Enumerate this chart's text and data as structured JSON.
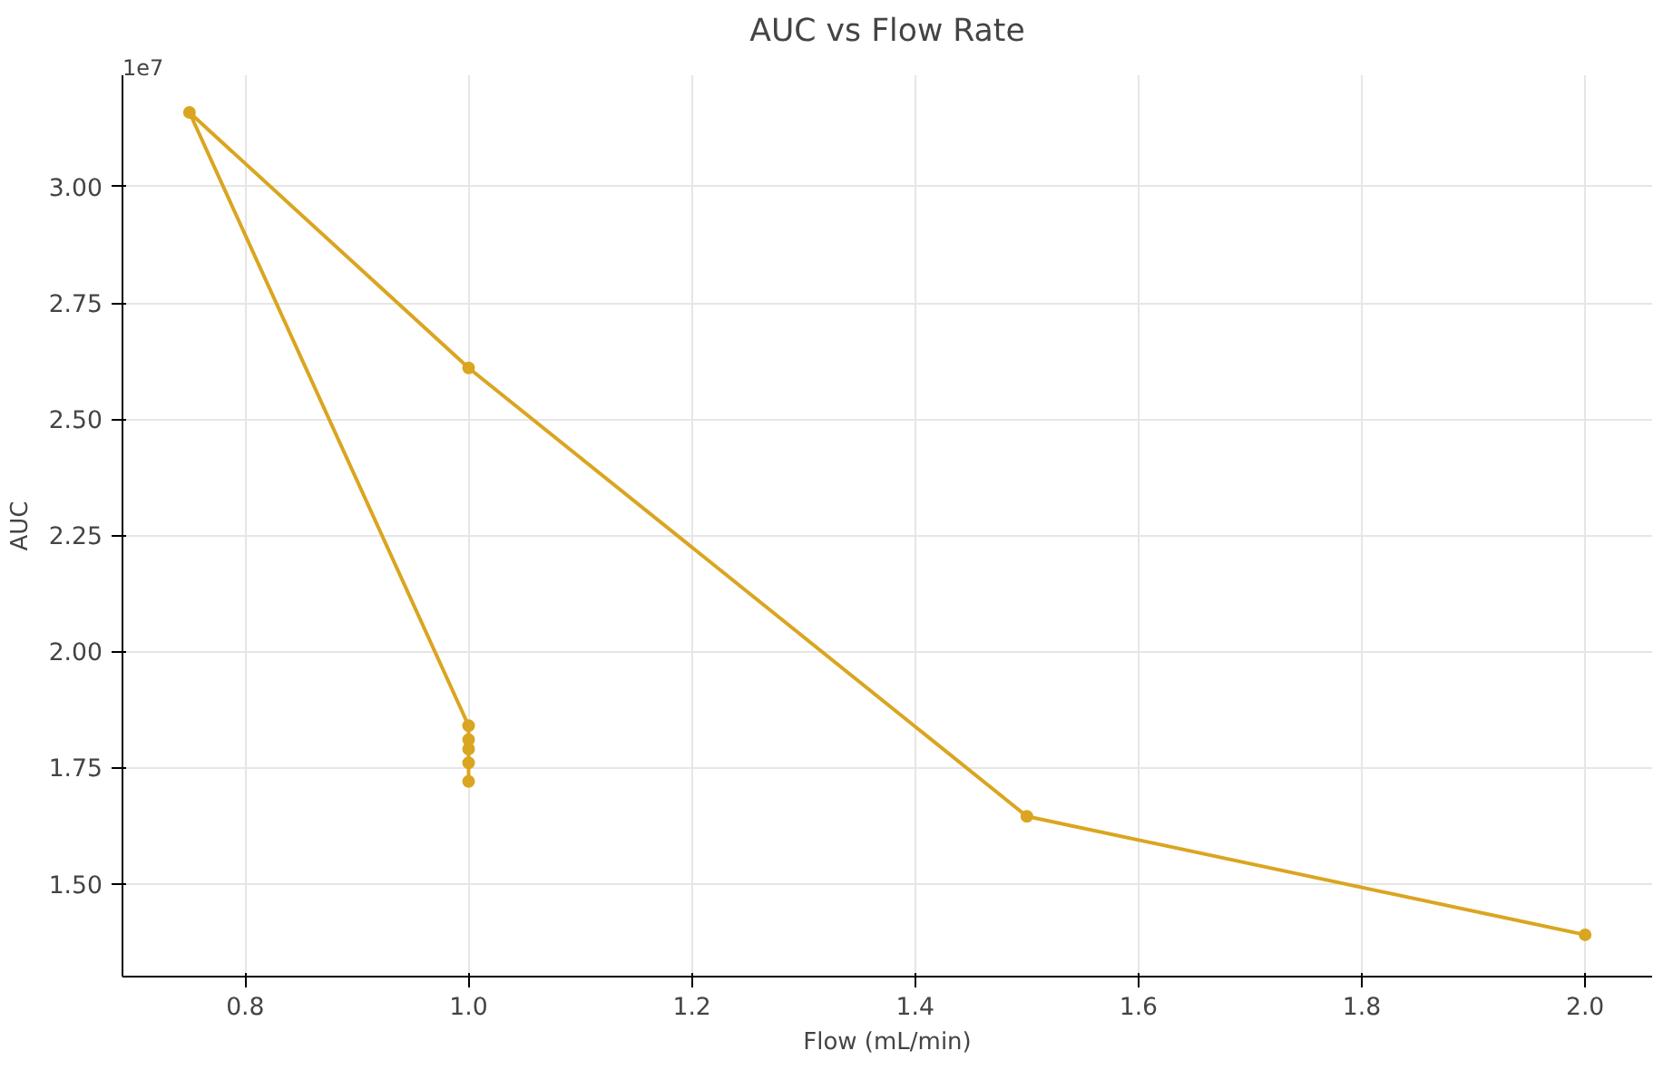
{
  "chart_data": {
    "type": "line",
    "title": "AUC vs Flow Rate",
    "xlabel": "Flow (mL/min)",
    "ylabel": "AUC",
    "annotations": [
      "1e7"
    ],
    "series": [
      {
        "color": "#daa520",
        "x": [
          1.0,
          1.0,
          1.0,
          1.0,
          1.0,
          0.75,
          1.0,
          1.5,
          2.0
        ],
        "values": [
          1.72,
          1.76,
          1.79,
          1.81,
          1.84,
          3.16,
          2.61,
          1.645,
          1.39
        ]
      }
    ],
    "xlim": [
      0.69,
      2.06
    ],
    "ylim": [
      1.3,
      3.24
    ],
    "xticks": [
      0.8,
      {
        "value": 1.0,
        "label": "1.0"
      },
      1.2,
      1.4,
      1.6,
      1.8,
      {
        "value": 2.0,
        "label": "2.0"
      }
    ],
    "yticks": [
      {
        "value": 1.5,
        "label": "1.50"
      },
      1.75,
      {
        "value": 2.0,
        "label": "2.00"
      },
      2.25,
      {
        "value": 2.5,
        "label": "2.50"
      },
      2.75,
      {
        "value": 3.0,
        "label": "3.00"
      }
    ],
    "grid": true,
    "marker": "circle",
    "line_style": "solid"
  }
}
